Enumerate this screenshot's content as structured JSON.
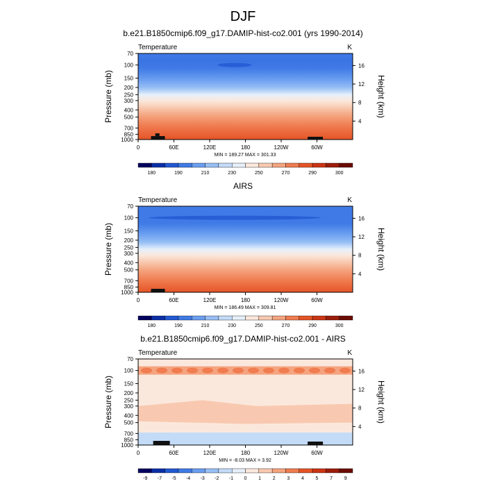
{
  "figure_title": "DJF",
  "chart_data": [
    {
      "type": "heatmap",
      "title": "b.e21.B1850cmip6.f09_g17.DAMIP-hist-co2.001 (yrs 1990-2014)",
      "left_label": "Temperature",
      "right_label": "K",
      "ylabel": "Pressure (mb)",
      "y2label": "Height (km)",
      "x_ticks": [
        "0",
        "60E",
        "120E",
        "180",
        "120W",
        "60W"
      ],
      "y_ticks": [
        "70",
        "100",
        "150",
        "200",
        "250",
        "300",
        "400",
        "500",
        "700",
        "850",
        "1000"
      ],
      "height_ticks": [
        "16",
        "12",
        "8",
        "4"
      ],
      "stats": "MIN = 189.27  MAX = 301.33",
      "min": 189.27,
      "max": 301.33,
      "colorbar": {
        "labels": [
          "180",
          "190",
          "210",
          "230",
          "250",
          "270",
          "290",
          "300"
        ],
        "colors": [
          "#02005e",
          "#0b2fa8",
          "#2258d2",
          "#3f7ae6",
          "#6a9ef0",
          "#98bff5",
          "#c4dbf8",
          "#e6f0fb",
          "#fbe8dc",
          "#f8c9b0",
          "#f4a47f",
          "#f07c50",
          "#e55427",
          "#cb3514",
          "#9c1d0a",
          "#6b0c03"
        ]
      }
    },
    {
      "type": "heatmap",
      "title": "AIRS",
      "left_label": "Temperature",
      "right_label": "K",
      "ylabel": "Pressure (mb)",
      "y2label": "Height (km)",
      "x_ticks": [
        "0",
        "60E",
        "120E",
        "180",
        "120W",
        "60W"
      ],
      "y_ticks": [
        "70",
        "100",
        "150",
        "200",
        "250",
        "300",
        "400",
        "500",
        "700",
        "850",
        "1000"
      ],
      "height_ticks": [
        "16",
        "12",
        "8",
        "4"
      ],
      "stats": "MIN = 186.49  MAX = 309.81",
      "min": 186.49,
      "max": 309.81,
      "colorbar": {
        "labels": [
          "180",
          "190",
          "210",
          "230",
          "250",
          "270",
          "290",
          "300"
        ],
        "colors": [
          "#02005e",
          "#0b2fa8",
          "#2258d2",
          "#3f7ae6",
          "#6a9ef0",
          "#98bff5",
          "#c4dbf8",
          "#e6f0fb",
          "#fbe8dc",
          "#f8c9b0",
          "#f4a47f",
          "#f07c50",
          "#e55427",
          "#cb3514",
          "#9c1d0a",
          "#6b0c03"
        ]
      }
    },
    {
      "type": "heatmap",
      "title": "b.e21.B1850cmip6.f09_g17.DAMIP-hist-co2.001 - AIRS",
      "left_label": "Temperature",
      "right_label": "K",
      "ylabel": "Pressure (mb)",
      "y2label": "Height (km)",
      "x_ticks": [
        "0",
        "60E",
        "120E",
        "180",
        "120W",
        "60W"
      ],
      "y_ticks": [
        "70",
        "100",
        "150",
        "200",
        "250",
        "300",
        "400",
        "500",
        "700",
        "850",
        "1000"
      ],
      "height_ticks": [
        "16",
        "12",
        "8",
        "4"
      ],
      "stats": "MIN = -8.03  MAX =  3.92",
      "min": -8.03,
      "max": 3.92,
      "colorbar": {
        "labels": [
          "-9",
          "-7",
          "-5",
          "-4",
          "-3",
          "-2",
          "-1",
          "0",
          "1",
          "2",
          "3",
          "4",
          "5",
          "7",
          "9"
        ],
        "colors": [
          "#02005e",
          "#0b2fa8",
          "#2258d2",
          "#3f7ae6",
          "#6a9ef0",
          "#98bff5",
          "#c4dbf8",
          "#e6f0fb",
          "#fbe8dc",
          "#f8c9b0",
          "#f4a47f",
          "#f07c50",
          "#e55427",
          "#cb3514",
          "#9c1d0a",
          "#6b0c03"
        ]
      }
    }
  ]
}
